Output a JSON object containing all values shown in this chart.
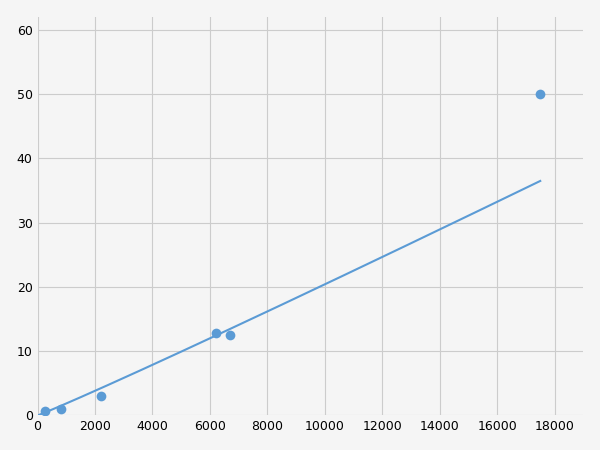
{
  "x_points": [
    250,
    800,
    2200,
    6200,
    6700,
    17500
  ],
  "y_points": [
    0.7,
    1.0,
    3.0,
    12.8,
    12.5,
    50.0
  ],
  "line_color": "#5b9bd5",
  "marker_color": "#5b9bd5",
  "marker_size": 7,
  "line_width": 1.5,
  "xlim": [
    0,
    19000
  ],
  "ylim": [
    0,
    62
  ],
  "xticks": [
    0,
    2000,
    4000,
    6000,
    8000,
    10000,
    12000,
    14000,
    16000,
    18000
  ],
  "yticks": [
    0,
    10,
    20,
    30,
    40,
    50,
    60
  ],
  "grid_color": "#cccccc",
  "background_color": "#ffffff",
  "fig_background": "#f5f5f5"
}
